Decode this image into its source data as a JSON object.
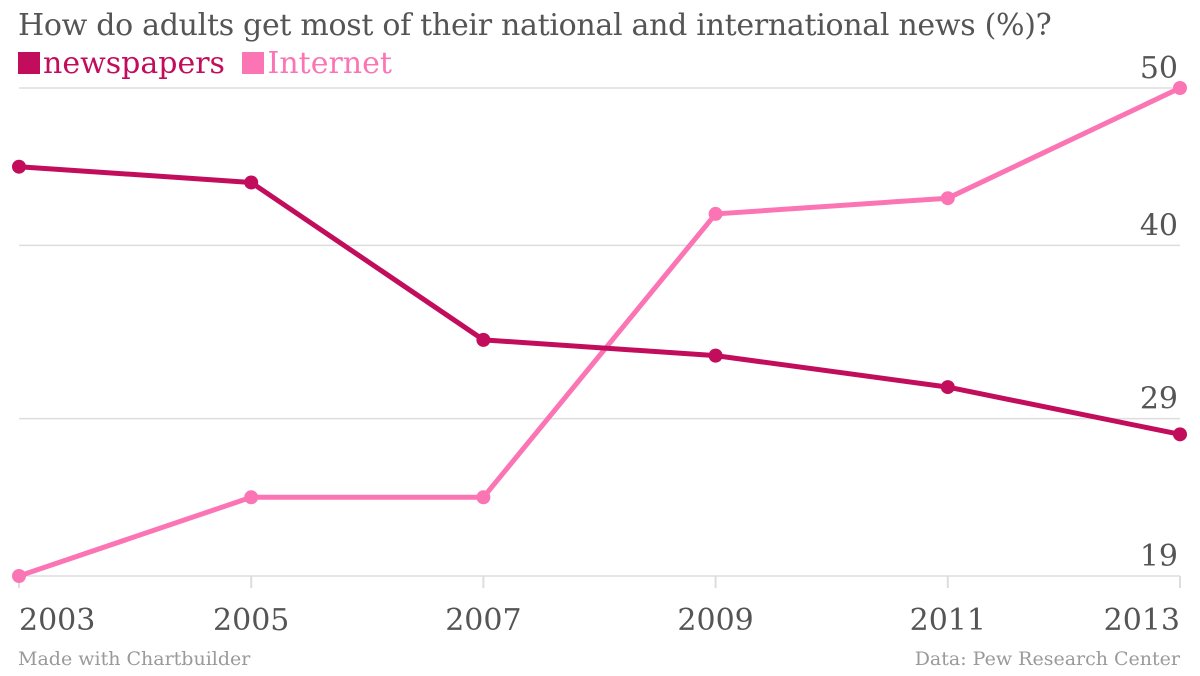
{
  "colors": {
    "newspapers": "#c20d5c",
    "internet": "#fb75b5",
    "text": "#555555",
    "grid": "#dddddd"
  },
  "chart_data": {
    "type": "line",
    "title": "How do adults get most of their national and international news (%)?",
    "x": [
      "2003",
      "2005",
      "2007",
      "2009",
      "2011",
      "2013"
    ],
    "series": [
      {
        "name": "newspapers",
        "values": [
          45,
          44,
          34,
          33,
          31,
          28
        ]
      },
      {
        "name": "Internet",
        "values": [
          19,
          24,
          24,
          42,
          43,
          50
        ]
      }
    ],
    "y_ticks": [
      19,
      29,
      40,
      50
    ],
    "ylim": [
      19,
      50
    ],
    "xlabel": "",
    "ylabel": "",
    "legend": "top-left",
    "grid": true
  },
  "footer": {
    "left": "Made with Chartbuilder",
    "right": "Data: Pew Research Center"
  }
}
